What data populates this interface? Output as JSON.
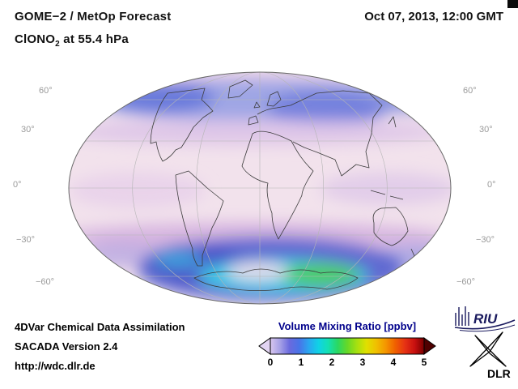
{
  "header": {
    "title": "GOME−2 / MetOp Forecast",
    "species_prefix": "ClONO",
    "species_sub": "2",
    "species_suffix": " at 55.4 hPa",
    "datetime": "Oct 07, 2013, 12:00 GMT"
  },
  "map": {
    "projection": "Mollweide global map",
    "lat_labels": [
      "60°",
      "30°",
      "0°",
      "−30°",
      "−60°"
    ],
    "palette": {
      "base_pink": "#f2e2ec",
      "north_band_blue": "#96a0e4",
      "violet_band": "#d2aede",
      "antarctic_blue": "#5864d0",
      "antarctic_cyan": "#34d2ea",
      "antarctic_green": "#52cc52"
    }
  },
  "colorbar": {
    "title": "Volume Mixing Ratio [ppbv]",
    "title_color": "#00008b",
    "min": 0,
    "max": 5,
    "ticks": [
      "0",
      "1",
      "2",
      "3",
      "4",
      "5"
    ],
    "left_arrow_color": "#e2d4f2",
    "right_arrow_color": "#4f0000",
    "gradient": [
      "#d8c6ee",
      "#a6a0e6",
      "#6a6ade",
      "#4874e8",
      "#2aa6f0",
      "#10d2e6",
      "#14e0b4",
      "#2ad862",
      "#66d828",
      "#a6e010",
      "#e0e000",
      "#f0c000",
      "#f49600",
      "#f06000",
      "#e63214",
      "#c81010",
      "#7a0000"
    ]
  },
  "footer": {
    "line1": "4DVar Chemical Data Assimilation",
    "line2": "SACADA Version 2.4",
    "line3": "http://wdc.dlr.de"
  },
  "logos": {
    "riu_text": "RIU",
    "dlr_text": "DLR"
  }
}
